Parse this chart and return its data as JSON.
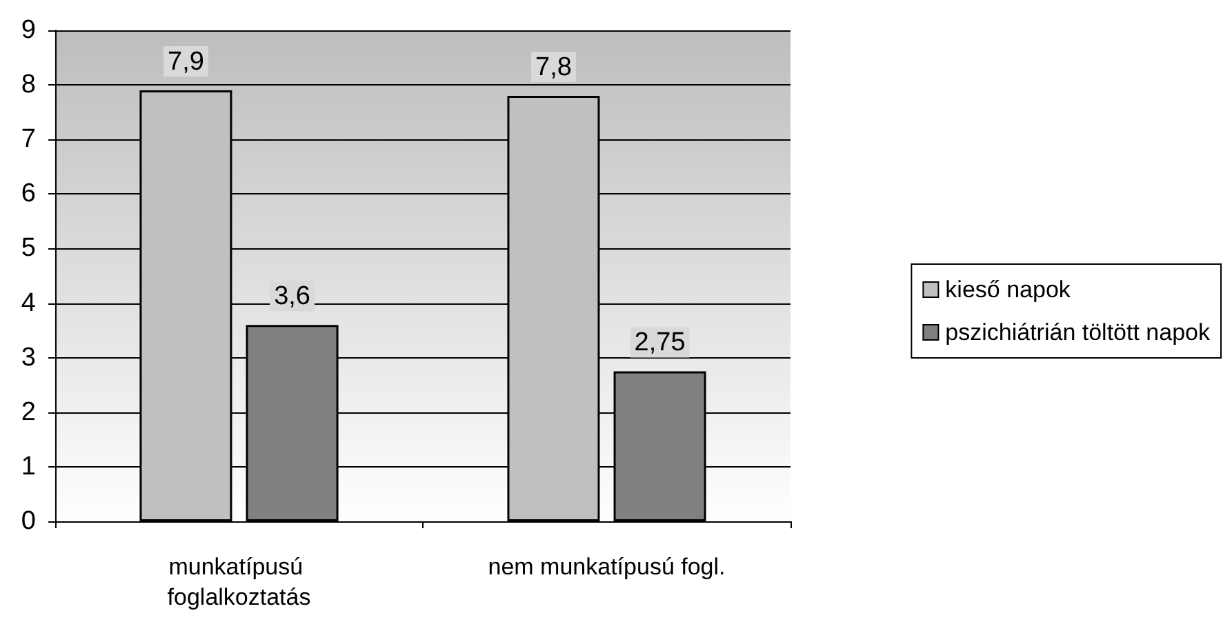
{
  "chart_data": {
    "type": "bar",
    "categories": [
      "munkatípusú foglalkoztatás",
      "nem munkatípusú fogl."
    ],
    "series": [
      {
        "name": "kieső napok",
        "color": "#c0c0c0",
        "values": [
          7.9,
          7.8
        ],
        "value_labels": [
          "7,9",
          "7,8"
        ]
      },
      {
        "name": "pszichiátrián töltött napok",
        "color": "#808080",
        "values": [
          3.6,
          2.75
        ],
        "value_labels": [
          "3,6",
          "2,75"
        ]
      }
    ],
    "ylim": [
      0,
      9
    ],
    "yticks": [
      0,
      1,
      2,
      3,
      4,
      5,
      6,
      7,
      8,
      9
    ],
    "grid": "y",
    "legend": "right"
  }
}
